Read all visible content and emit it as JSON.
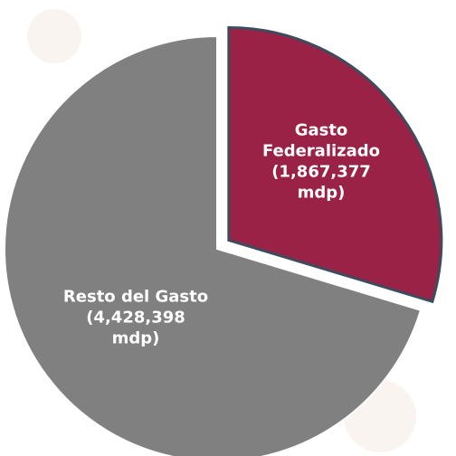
{
  "chart_data": {
    "type": "pie",
    "categories": [
      "Gasto Federalizado",
      "Resto del Gasto"
    ],
    "values": [
      1867377,
      4428398
    ],
    "value_labels": [
      "(1,867,377 mdp)",
      "(4,428,398 mdp)"
    ],
    "colors": [
      "#9b2247",
      "#808080"
    ]
  }
}
